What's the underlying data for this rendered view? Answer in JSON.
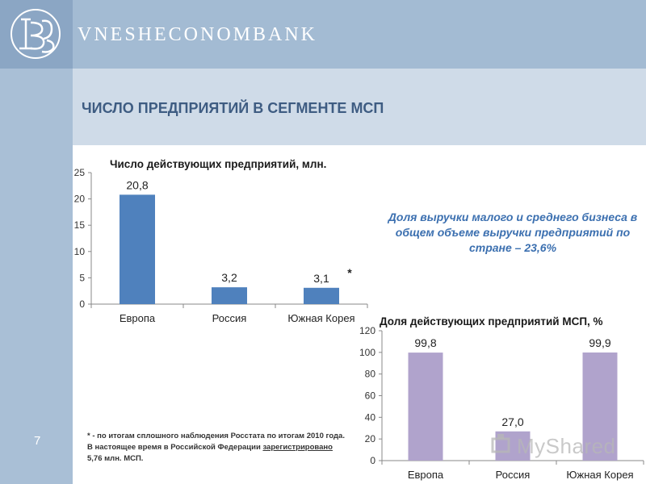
{
  "header": {
    "bank_name": "VNESHECONOMBANK",
    "title": "ЧИСЛО ПРЕДПРИЯТИЙ В СЕГМЕНТЕ МСП",
    "page_number": "7"
  },
  "colors": {
    "bar1": "#4f81bd",
    "bar2": "#b0a3cc",
    "note": "#3c70b0",
    "title": "#3e5c82"
  },
  "note": "Доля выручки малого и среднего бизнеса в общем объеме выручки предприятий по стране – 23,6%",
  "footnote": {
    "part1": "* - по итогам сплошного наблюдения Росстата по итогам 2010 года. В настоящее время в Российской Федерации",
    "underlined": "зарегистрировано",
    "part2": " 5,76 млн. МСП."
  },
  "watermark": "MyShared",
  "chart_data": [
    {
      "type": "bar",
      "title": "Число действующих предприятий, млн.",
      "categories": [
        "Европа",
        "Россия",
        "Южная Корея"
      ],
      "values": [
        20.8,
        3.2,
        3.1
      ],
      "data_labels": [
        "20,8",
        "3,2",
        "3,1"
      ],
      "yticks": [
        "0",
        "5",
        "10",
        "15",
        "20",
        "25"
      ],
      "ylim": [
        0,
        25
      ],
      "asterisk": "*",
      "grid": false
    },
    {
      "type": "bar",
      "title": "Доля действующих предприятий МСП, %",
      "categories": [
        "Европа",
        "Россия",
        "Южная Корея"
      ],
      "values": [
        99.8,
        27.0,
        99.9
      ],
      "data_labels": [
        "99,8",
        "27,0",
        "99,9"
      ],
      "yticks": [
        "0",
        "20",
        "40",
        "60",
        "80",
        "100",
        "120"
      ],
      "ylim": [
        0,
        120
      ],
      "grid": false
    }
  ]
}
